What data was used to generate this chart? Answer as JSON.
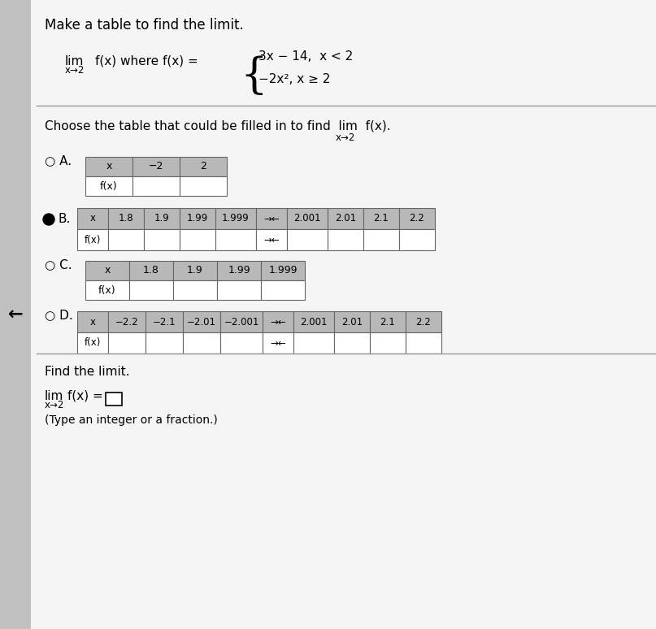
{
  "title": "Make a table to find the limit.",
  "background_color": "#d4d4d4",
  "page_background": "#f0f0f0",
  "lim_text": "lim  f(x) where f(x) =",
  "lim_sub": "x→2",
  "func1": "3x − 14,  x < 2",
  "func2": "−2x²,   x ≥ 2",
  "choose_text": "Choose the table that could be filled in to find  lim  f(x).",
  "choose_sub": "x→2",
  "options": [
    "A.",
    "B.",
    "C.",
    "D."
  ],
  "selected": "B",
  "tableA": {
    "x_vals": [
      "x",
      "−2",
      "2"
    ],
    "f_vals": [
      "f(x)",
      "",
      ""
    ]
  },
  "tableB": {
    "x_vals": [
      "x",
      "1.8",
      "1.9",
      "1.99",
      "1.999",
      "→←",
      "2.001",
      "2.01",
      "2.1",
      "2.2"
    ],
    "f_vals": [
      "f(x)",
      "",
      "",
      "",
      "",
      "→←",
      "",
      "",
      "",
      ""
    ]
  },
  "tableC": {
    "x_vals": [
      "x",
      "1.8",
      "1.9",
      "1.99",
      "1.999"
    ],
    "f_vals": [
      "f(x)",
      "",
      "",
      "",
      ""
    ]
  },
  "tableD": {
    "x_vals": [
      "x",
      "−2.2",
      "−2.1",
      "−2.01",
      "−2.001",
      "→←",
      "2.001",
      "2.01",
      "2.1",
      "2.2"
    ],
    "f_vals": [
      "f(x)",
      "",
      "",
      "",
      "",
      "→←",
      "",
      "",
      "",
      ""
    ]
  },
  "find_limit_text": "Find the limit.",
  "lim_answer_text": "lim  f(x) =",
  "lim_answer_sub": "x→2",
  "answer_box": "□",
  "type_text": "(Type an integer or a fraction.)"
}
